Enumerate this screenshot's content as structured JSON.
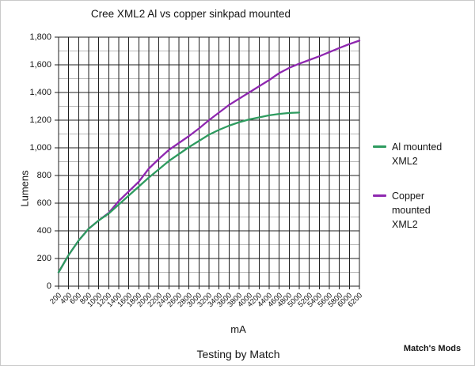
{
  "texts": {
    "footer": "Testing by Match",
    "watermark": "Match's Mods"
  },
  "chart_data": {
    "type": "line",
    "title": "Cree XML2 Al vs copper sinkpad mounted",
    "xlabel": "mA",
    "ylabel": "Lumens",
    "xlim": [
      200,
      6200
    ],
    "ylim": [
      0,
      1800
    ],
    "grid": "major-black-minor-gray",
    "legend_position": "right",
    "x_tick_labels": [
      "200",
      "400",
      "600",
      "800",
      "1000",
      "1200",
      "1400",
      "1600",
      "1800",
      "2000",
      "2200",
      "2400",
      "2600",
      "2800",
      "3000",
      "3200",
      "3400",
      "3600",
      "3800",
      "4000",
      "4200",
      "4400",
      "4600",
      "4800",
      "5000",
      "5200",
      "5400",
      "5600",
      "5800",
      "6000",
      "6200"
    ],
    "y_tick_labels": [
      "0",
      "200",
      "400",
      "600",
      "800",
      "1,000",
      "1,200",
      "1,400",
      "1,600",
      "1,800"
    ],
    "y_major_step": 200,
    "y_minor_step": 100,
    "colors": {
      "major_grid": "#1f1f1f",
      "minor_grid": "#b8b8b8",
      "plot_border": "#1f1f1f"
    },
    "series": [
      {
        "name": "Al mounted XML2",
        "color": "#2e9b5f",
        "x": [
          200,
          400,
          600,
          800,
          1000,
          1200,
          1400,
          1600,
          1800,
          2000,
          2200,
          2400,
          2600,
          2800,
          3000,
          3200,
          3400,
          3600,
          3800,
          4000,
          4200,
          4400,
          4600,
          4800,
          5000
        ],
        "values": [
          100,
          225,
          330,
          415,
          475,
          525,
          590,
          655,
          720,
          785,
          845,
          905,
          955,
          1005,
          1050,
          1095,
          1130,
          1160,
          1185,
          1205,
          1220,
          1235,
          1245,
          1252,
          1255
        ]
      },
      {
        "name": "Copper mounted XML2",
        "color": "#8f28b0",
        "x": [
          200,
          400,
          600,
          800,
          1000,
          1200,
          1400,
          1600,
          1800,
          2000,
          2200,
          2400,
          2600,
          2800,
          3000,
          3200,
          3400,
          3600,
          3800,
          4000,
          4200,
          4400,
          4600,
          4800,
          5000,
          5200,
          5400,
          5600,
          5800,
          6000,
          6200
        ],
        "values": [
          100,
          225,
          330,
          415,
          475,
          530,
          615,
          685,
          755,
          850,
          920,
          985,
          1035,
          1085,
          1140,
          1200,
          1255,
          1310,
          1355,
          1400,
          1445,
          1490,
          1540,
          1578,
          1608,
          1635,
          1662,
          1692,
          1722,
          1750,
          1775
        ]
      }
    ]
  }
}
